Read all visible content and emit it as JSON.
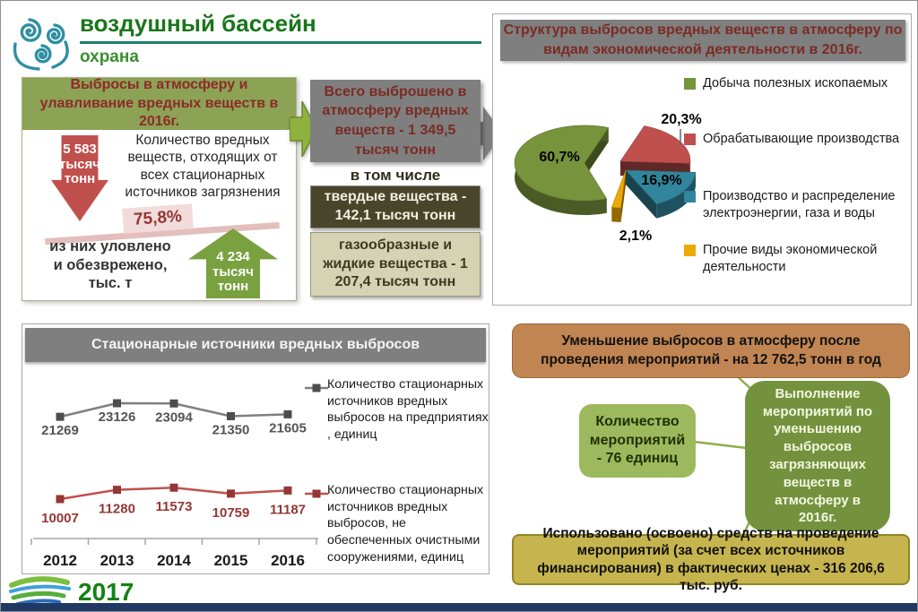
{
  "header": {
    "title": "воздушный бассейн",
    "subtitle": "охрана",
    "year": "2017"
  },
  "emissions_panel": {
    "title": "Выбросы в атмосферу и улавливание вредных веществ в 2016г.",
    "down_arrow_value": "5 583\nтысяч\nтонн",
    "sources_text": "Количество вредных веществ, отходящих от всех стационарных источников загрязнения",
    "captured_percent": "75,8%",
    "captured_text": "из них уловлено\nи обезврежено,\nтыс. т",
    "up_arrow_value": "4 234\nтысяч\nтонн"
  },
  "flow": {
    "total_box": "Всего выброшено в атмосферу вредных веществ - 1 349,5 тысяч тонн",
    "including_label": "в том числе",
    "solid_box": "твердые вещества - 142,1 тысяч тонн",
    "gas_box": "газообразные и жидкие  вещества - 1 207,4 тысяч тонн"
  },
  "measures": {
    "reduction_box": "Уменьшение выбросов в атмосферу после проведения мероприятий -  на 12 762,5 тонн в год",
    "count_box": "Количество мероприятий - 76 единиц",
    "execution_box": "Выполнение мероприятий по уменьшению выбросов загрязняющих веществ в атмосферу в 2016г.",
    "funding_box": "Использовано (освоено) средств на проведение мероприятий (за счет всех источников финансирования) в фактических ценах  - 316 206,6 тыс. руб."
  },
  "chart_data": [
    {
      "type": "pie",
      "title": "Структура выбросов вредных веществ в атмосферу по видам экономической деятельности в 2016г.",
      "legend_position": "right",
      "style": "3d-exploded",
      "slices": [
        {
          "label": "Добыча полезных ископаемых",
          "value": 60.7,
          "display": "60,7%",
          "color": "#77933C"
        },
        {
          "label": "Обрабатывающие производства",
          "value": 20.3,
          "display": "20,3%",
          "color": "#C0504D"
        },
        {
          "label": "Производство и распределение электроэнергии, газа и воды",
          "value": 16.9,
          "display": "16,9%",
          "color": "#31859C"
        },
        {
          "label": "Прочие виды экономической деятельности",
          "value": 2.1,
          "display": "2,1%",
          "color": "#EDA900"
        }
      ]
    },
    {
      "type": "line",
      "title": "Стационарные источники вредных выбросов",
      "categories": [
        "2012",
        "2013",
        "2014",
        "2015",
        "2016"
      ],
      "grid": false,
      "legend_position": "right",
      "series": [
        {
          "name": "Количество стационарных источников вредных выбросов на предприятиях , единиц",
          "values": [
            21269,
            23126,
            23094,
            21350,
            21605
          ],
          "color": "#7F7F7F",
          "marker_color": "#4D4D4D",
          "label_color": "#545454"
        },
        {
          "name": "Количество стационарных источников вредных выбросов, не обеспеченных очистными сооружениями, единиц",
          "values": [
            10007,
            11280,
            11573,
            10759,
            11187
          ],
          "color": "#C0504D",
          "marker_color": "#943735",
          "label_color": "#943735"
        }
      ]
    }
  ]
}
